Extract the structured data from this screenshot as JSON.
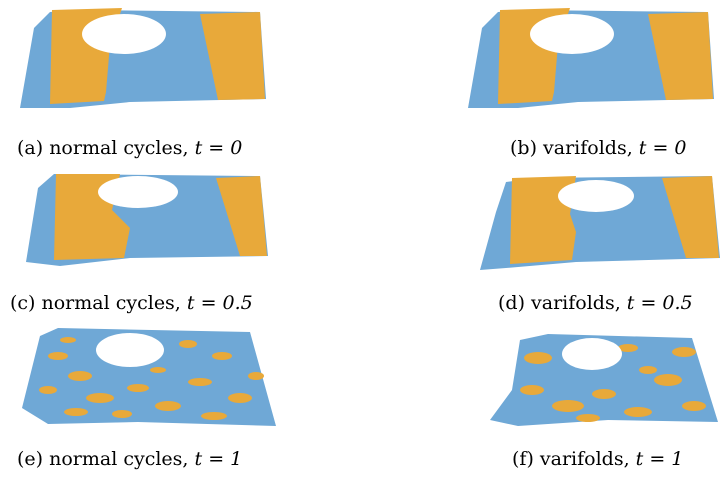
{
  "colors": {
    "blue": "#6fa8d6",
    "orange": "#e8a93a",
    "hole": "#ffffff"
  },
  "panels": [
    {
      "id": "a",
      "caption": "(a) normal cycles,",
      "math": "t = 0"
    },
    {
      "id": "b",
      "caption": "(b) varifolds,",
      "math": "t = 0"
    },
    {
      "id": "c",
      "caption": "(c) normal cycles,",
      "math": "t = 0.5"
    },
    {
      "id": "d",
      "caption": "(d) varifolds,",
      "math": "t = 0.5"
    },
    {
      "id": "e",
      "caption": "(e) normal cycles,",
      "math": "t = 1"
    },
    {
      "id": "f",
      "caption": "(f) varifolds,",
      "math": "t = 1"
    }
  ]
}
